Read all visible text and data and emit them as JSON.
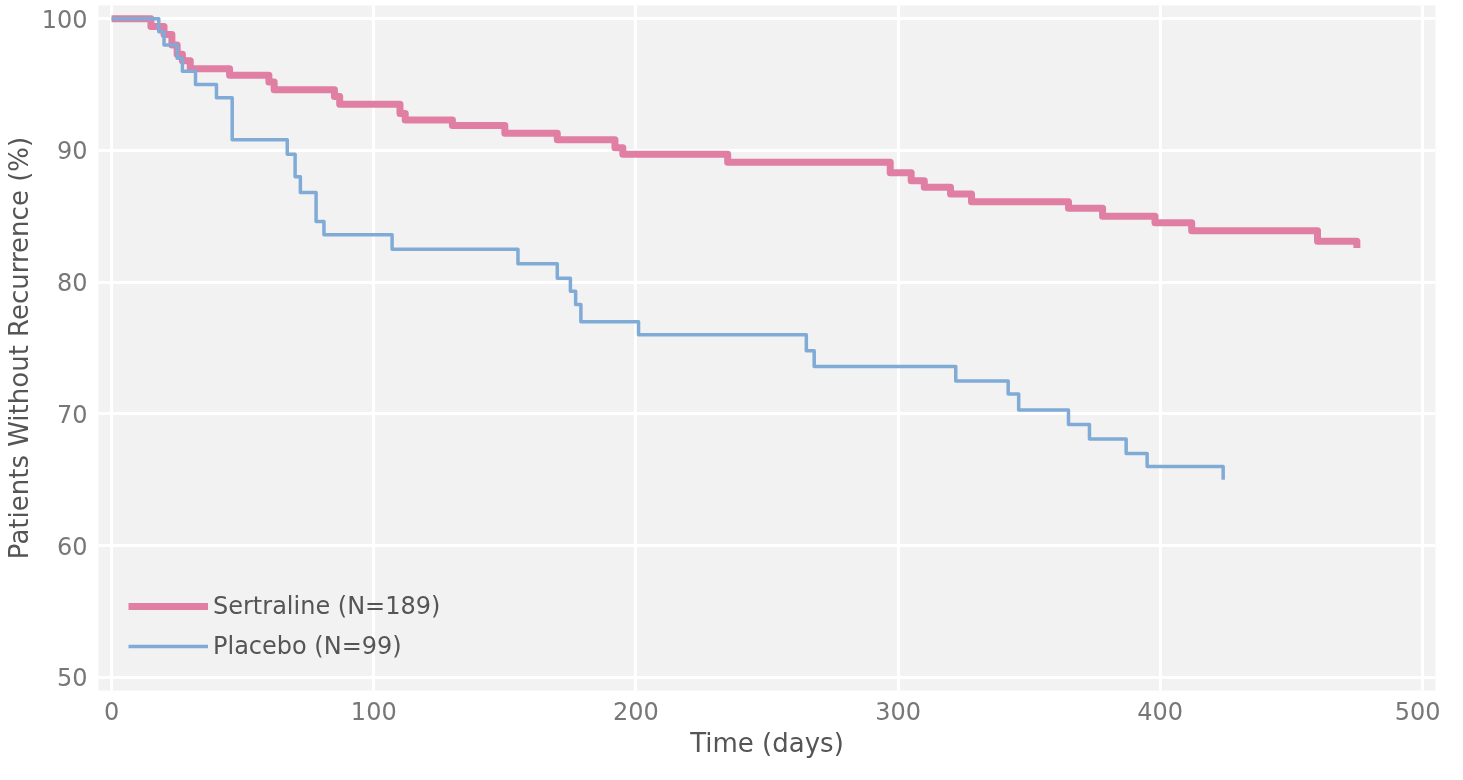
{
  "chart_data": {
    "type": "step",
    "xlabel": "Time (days)",
    "ylabel": "Patients Without Recurrence (%)",
    "xlim": [
      -5,
      505
    ],
    "ylim": [
      49,
      101
    ],
    "xticks": [
      0,
      100,
      200,
      300,
      400,
      500
    ],
    "yticks": [
      50,
      60,
      70,
      80,
      90,
      100
    ],
    "grid": true,
    "legend": "bottom left",
    "line_style": "solid",
    "series": [
      {
        "name": "Sertraline (N=189)",
        "color": "#e07fa3",
        "x": [
          0,
          15,
          20,
          23,
          25,
          27,
          30,
          45,
          60,
          62,
          85,
          87,
          110,
          112,
          130,
          150,
          170,
          192,
          195,
          235,
          297,
          305,
          310,
          320,
          328,
          365,
          378,
          398,
          412,
          460,
          475
        ],
        "values": [
          100,
          99.4,
          98.8,
          98,
          97.3,
          96.8,
          96.2,
          95.7,
          95.2,
          94.6,
          94.1,
          93.5,
          92.8,
          92.3,
          91.9,
          91.3,
          90.8,
          90.2,
          89.7,
          89.1,
          88.3,
          87.7,
          87.2,
          86.7,
          86.1,
          85.6,
          85,
          84.5,
          83.9,
          83.1,
          82.6
        ]
      },
      {
        "name": "Placebo (N=99)",
        "color": "#7fabd6",
        "x": [
          0,
          18,
          20,
          25,
          27,
          32,
          40,
          46,
          67,
          70,
          72,
          78,
          81,
          107,
          155,
          170,
          175,
          177,
          179,
          201,
          265,
          268,
          322,
          342,
          346,
          365,
          373,
          387,
          395,
          424
        ],
        "values": [
          100,
          99,
          98,
          97,
          96,
          95,
          94,
          90.8,
          89.7,
          88,
          86.8,
          84.6,
          83.6,
          82.5,
          81.4,
          80.3,
          79.3,
          78.3,
          77,
          76,
          74.8,
          73.6,
          72.5,
          71.5,
          70.3,
          69.2,
          68.1,
          67,
          66,
          65
        ]
      }
    ]
  }
}
